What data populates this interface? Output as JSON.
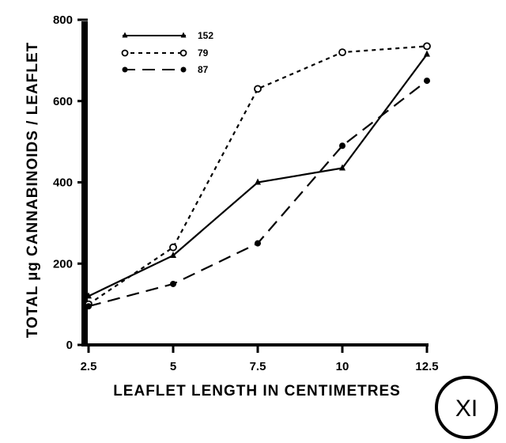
{
  "chart_data": {
    "type": "line",
    "xlabel": "LEAFLET LENGTH IN CENTIMETRES",
    "ylabel": "TOTAL µg CANNABINOIDS / LEAFLET",
    "xlim": [
      2.5,
      12.5
    ],
    "ylim": [
      0,
      800
    ],
    "x_ticks": [
      "2.5",
      "5",
      "7.5",
      "10",
      "12.5"
    ],
    "y_ticks": [
      "0",
      "200",
      "400",
      "600",
      "800"
    ],
    "grid": false,
    "legend_position": "top-left",
    "x": [
      2.5,
      5,
      7.5,
      10,
      12.5
    ],
    "series": [
      {
        "name": "152",
        "marker": "triangle",
        "line_style": "solid",
        "values": [
          120,
          220,
          400,
          435,
          715
        ]
      },
      {
        "name": "79",
        "marker": "open-circle",
        "line_style": "dotted",
        "values": [
          100,
          240,
          630,
          720,
          735
        ]
      },
      {
        "name": "87",
        "marker": "filled-circle",
        "line_style": "dashed",
        "values": [
          95,
          150,
          250,
          490,
          650
        ]
      }
    ],
    "annotations": [
      "XI"
    ]
  }
}
